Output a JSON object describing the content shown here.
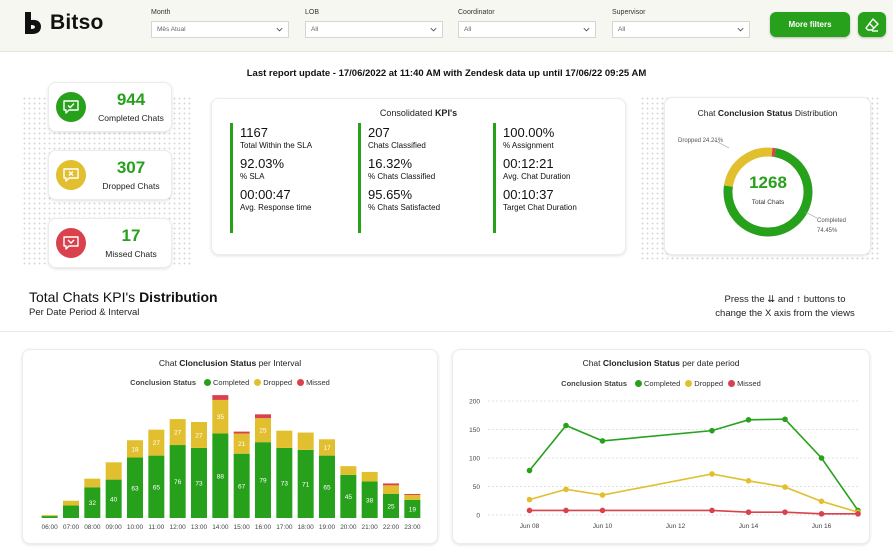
{
  "header": {
    "logo_text": "Bitso",
    "filters": [
      {
        "label": "Month",
        "value": "Mês Atual"
      },
      {
        "label": "LOB",
        "value": "All"
      },
      {
        "label": "Coordinator",
        "value": "All"
      },
      {
        "label": "Supervisor",
        "value": "All"
      }
    ],
    "more_filters_label": "More filters"
  },
  "last_update": "Last report update - 17/06/2022 at 11:40 AM with Zendesk data up until  17/06/22 09:25 AM",
  "stats": [
    {
      "value": "944",
      "label": "Completed Chats",
      "color": "#27a11c",
      "icon": "chat-check-icon"
    },
    {
      "value": "307",
      "label": "Dropped Chats",
      "color": "#e2bf2e",
      "icon": "chat-close-icon"
    },
    {
      "value": "17",
      "label": "Missed Chats",
      "color": "#d9414c",
      "icon": "chat-missed-icon"
    }
  ],
  "kpis": {
    "title_prefix": "Consolidated ",
    "title_bold": "KPI's",
    "columns": [
      [
        {
          "value": "1167",
          "label": "Total Within the SLA"
        },
        {
          "value": "92.03%",
          "label": "% SLA"
        },
        {
          "value": "00:00:47",
          "label": "Avg. Response time"
        }
      ],
      [
        {
          "value": "207",
          "label": "Chats Classified"
        },
        {
          "value": "16.32%",
          "label": "% Chats Classified"
        },
        {
          "value": "95.65%",
          "label": "% Chats Satisfacted"
        }
      ],
      [
        {
          "value": "100.00%",
          "label": "% Assignment"
        },
        {
          "value": "00:12:21",
          "label": "Avg. Chat Duration"
        },
        {
          "value": "00:10:37",
          "label": "Target Chat Duration"
        }
      ]
    ]
  },
  "donut": {
    "title_prefix": "Chat ",
    "title_bold": "Conclusion Status",
    "title_suffix": " Distribution",
    "total": "1268",
    "total_label": "Total Chats",
    "dropped_label": "Dropped 24.21%",
    "completed_label": "Completed",
    "completed_pct": "74.45%",
    "shares": {
      "completed": 0.7445,
      "dropped": 0.2421,
      "missed": 0.0134
    }
  },
  "section": {
    "title_prefix": "Total Chats KPI's ",
    "title_bold": "Distribution",
    "subtitle": "Per Date Period & Interval",
    "hint_line1": "Press the ⇊ and ↑ buttons to",
    "hint_line2": "change the X axis from the views"
  },
  "colors": {
    "completed": "#27a11c",
    "dropped": "#e2bf2e",
    "missed": "#d9414c"
  },
  "chart_data": [
    {
      "type": "bar",
      "stacked": true,
      "title_prefix": "Chat ",
      "title_bold": "Clonclusion Status",
      "title_suffix": " per Interval",
      "legend_title": "Conclusion Status",
      "categories": [
        "06:00",
        "07:00",
        "08:00",
        "09:00",
        "10:00",
        "11:00",
        "12:00",
        "13:00",
        "14:00",
        "15:00",
        "16:00",
        "17:00",
        "18:00",
        "19:00",
        "20:00",
        "21:00",
        "22:00",
        "23:00"
      ],
      "series": [
        {
          "name": "Completed",
          "values": [
            2,
            13,
            32,
            40,
            63,
            65,
            76,
            73,
            88,
            67,
            79,
            73,
            71,
            65,
            45,
            38,
            25,
            19
          ]
        },
        {
          "name": "Dropped",
          "values": [
            1,
            5,
            9,
            18,
            18,
            27,
            27,
            27,
            35,
            21,
            25,
            18,
            18,
            17,
            9,
            10,
            9,
            5
          ]
        },
        {
          "name": "Missed",
          "values": [
            0,
            0,
            0,
            0,
            0,
            0,
            0,
            0,
            5,
            2,
            4,
            0,
            0,
            0,
            0,
            0,
            2,
            1
          ]
        }
      ],
      "bar_labels": {
        "completed": [
          "",
          "",
          "32",
          "40",
          "63",
          "65",
          "76",
          "73",
          "88",
          "67",
          "79",
          "73",
          "71",
          "65",
          "45",
          "38",
          "25",
          "19"
        ],
        "dropped": [
          "",
          "",
          "",
          "",
          "18",
          "27",
          "27",
          "27",
          "35",
          "21",
          "25",
          "",
          "",
          "17",
          "",
          "",
          "",
          ""
        ]
      }
    },
    {
      "type": "line",
      "title_prefix": "Chat ",
      "title_bold": "Clonclusion Status",
      "title_suffix": " per date period",
      "legend_title": "Conclusion Status",
      "x_ticks": [
        "Jun 08",
        "Jun 10",
        "Jun 12",
        "Jun 14",
        "Jun 16"
      ],
      "y_ticks": [
        "0",
        "50",
        "100",
        "150",
        "200"
      ],
      "ylim": [
        0,
        200
      ],
      "x": [
        "2022-06-08",
        "2022-06-09",
        "2022-06-10",
        "2022-06-13",
        "2022-06-14",
        "2022-06-15",
        "2022-06-16",
        "2022-06-17"
      ],
      "series": [
        {
          "name": "Completed",
          "values": [
            78,
            157,
            130,
            148,
            167,
            168,
            100,
            8
          ]
        },
        {
          "name": "Dropped",
          "values": [
            27,
            45,
            35,
            72,
            60,
            49,
            24,
            5
          ]
        },
        {
          "name": "Missed",
          "values": [
            8,
            8,
            8,
            8,
            5,
            5,
            2,
            2
          ]
        }
      ]
    }
  ]
}
